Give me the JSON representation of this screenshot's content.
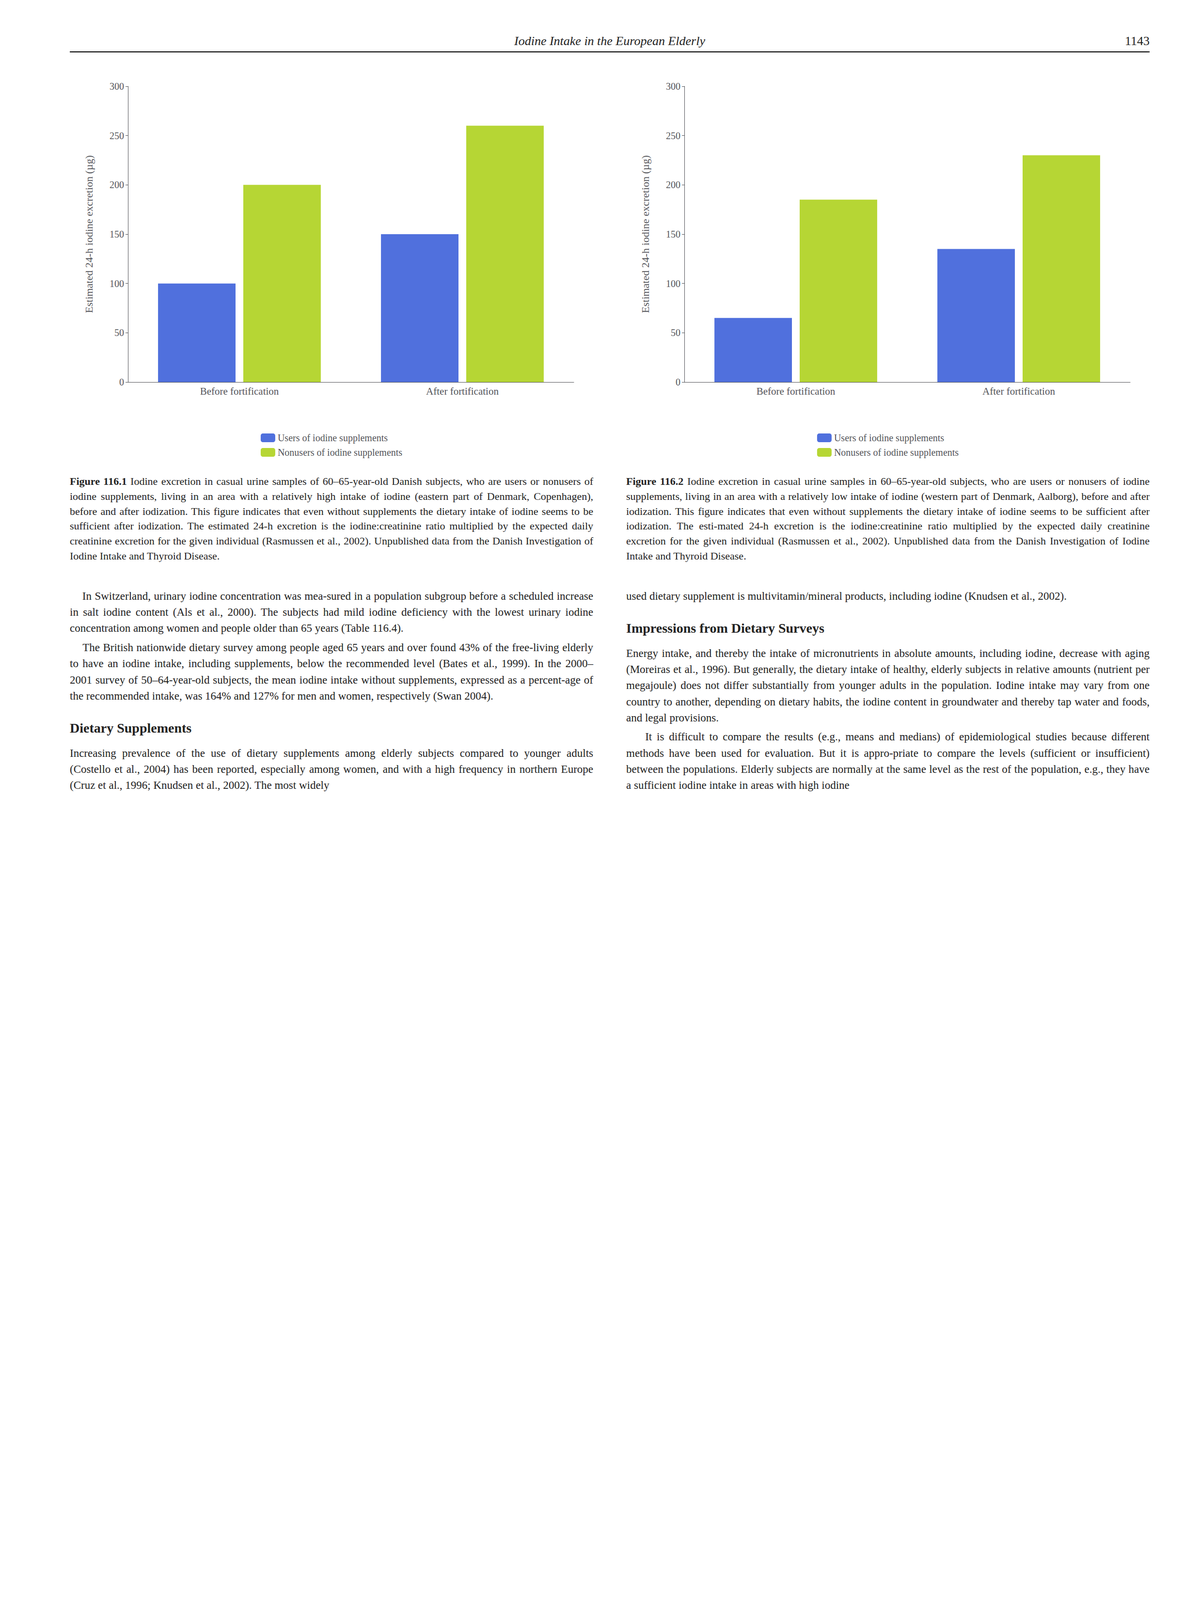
{
  "header": {
    "title": "Iodine Intake in the European Elderly",
    "page": "1143"
  },
  "chart_data": [
    {
      "type": "bar",
      "ylabel": "Estimated 24-h iodine excretion (µg)",
      "categories": [
        "Before fortification",
        "After fortification"
      ],
      "series": [
        {
          "name": "Users of iodine supplements",
          "values": [
            100,
            150
          ]
        },
        {
          "name": "Nonusers of iodine supplements",
          "values": [
            200,
            260
          ]
        }
      ],
      "ylim": [
        0,
        300
      ],
      "yticks": [
        0,
        50,
        100,
        150,
        200,
        250,
        300
      ],
      "grid": false,
      "legend": "bottom",
      "caption_label": "Figure 116.1",
      "caption": " Iodine excretion in casual urine samples of 60–65-year-old Danish subjects, who are users or nonusers of iodine supplements, living in an area with a relatively high intake of iodine (eastern part of Denmark, Copenhagen), before and after iodization. This figure indicates that even without supplements the dietary intake of iodine seems to be sufficient after iodization. The estimated 24-h excretion is the iodine:creatinine ratio multiplied by the expected daily creatinine excretion for the given individual (Rasmussen et al., 2002). Unpublished data from the Danish Investigation of Iodine Intake and Thyroid Disease."
    },
    {
      "type": "bar",
      "ylabel": "Estimated 24-h iodine excretion (µg)",
      "categories": [
        "Before fortification",
        "After fortification"
      ],
      "series": [
        {
          "name": "Users of iodine supplements",
          "values": [
            65,
            135
          ]
        },
        {
          "name": "Nonusers of iodine supplements",
          "values": [
            185,
            230
          ]
        }
      ],
      "ylim": [
        0,
        300
      ],
      "yticks": [
        0,
        50,
        100,
        150,
        200,
        250,
        300
      ],
      "grid": false,
      "legend": "bottom",
      "caption_label": "Figure 116.2",
      "caption": " Iodine excretion in casual urine samples in 60–65-year-old subjects, who are users or nonusers of iodine supplements, living in an area with a relatively low intake of iodine (western part of Denmark, Aalborg), before and after iodization. This figure indicates that even without supplements the dietary intake of iodine seems to be sufficient after iodization. The esti-mated 24-h excretion is the iodine:creatinine ratio multiplied by the expected daily creatinine excretion for the given individual (Rasmussen et al., 2002). Unpublished data from the Danish Investigation of Iodine Intake and Thyroid Disease."
    }
  ],
  "columns": [
    {
      "paragraphs": [
        "    In Switzerland, urinary iodine concentration was mea-sured in a population subgroup before a scheduled increase in salt iodine content (Als et al., 2000). The subjects had mild iodine deficiency with the lowest urinary iodine concentration among women and people older than 65 years (Table 116.4).",
        "    The British nationwide dietary survey among people aged 65 years and over found 43% of the free-living elderly to have an iodine intake, including supplements, below the recommended level (Bates et al., 1999). In the 2000–2001 survey of 50–64-year-old subjects, the mean iodine intake without supplements, expressed as a percent-age of the recommended intake, was 164% and 127% for men and women, respectively (Swan 2004)."
      ],
      "section_title": "Dietary Supplements",
      "section_paragraphs": [
        "Increasing prevalence of the use of dietary supplements among elderly subjects compared to younger adults (Costello et al., 2004) has been reported, especially among women, and with a high frequency in northern Europe (Cruz et al., 1996; Knudsen et al., 2002). The most widely"
      ]
    },
    {
      "paragraphs": [
        "used dietary supplement is multivitamin/mineral products, including iodine (Knudsen et al., 2002)."
      ],
      "section_title": "Impressions from Dietary Surveys",
      "section_paragraphs": [
        "Energy intake, and thereby the intake of micronutrients in absolute amounts, including iodine, decrease with aging (Moreiras et al., 1996). But generally, the dietary intake of healthy, elderly subjects in relative amounts (nutrient per megajoule) does not differ substantially from younger adults in the population. Iodine intake may vary from one country to another, depending on dietary habits, the iodine content in groundwater and thereby tap water and foods, and legal provisions.",
        "    It is difficult to compare the results (e.g., means and medians) of epidemiological studies because different methods have been used for evaluation. But it is appro-priate to compare the levels (sufficient or insufficient) between the populations. Elderly subjects are normally at the same level as the rest of the population, e.g., they have a sufficient iodine intake in areas with high iodine"
      ]
    }
  ]
}
